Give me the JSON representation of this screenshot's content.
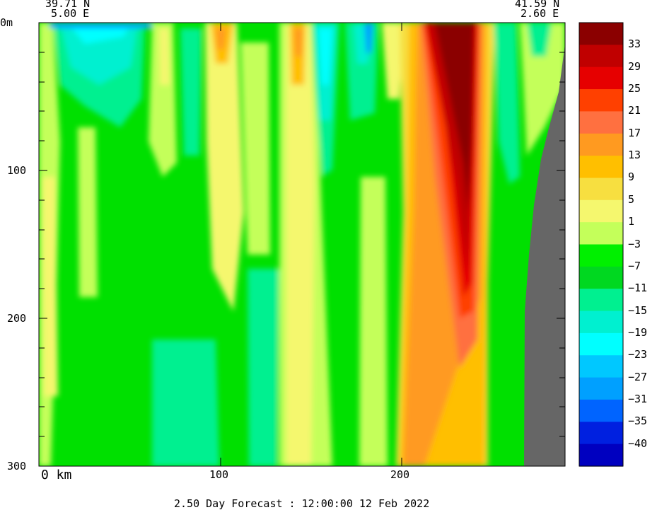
{
  "header": {
    "start_lat": "39.71 N",
    "start_lon": "5.00 E",
    "end_lat": "41.59 N",
    "end_lon": "2.60 E"
  },
  "footer": {
    "forecast": "2.50 Day Forecast : 12:00:00  12 Feb 2022"
  },
  "chart_data": {
    "type": "heatmap",
    "title": "",
    "xlabel": "km",
    "ylabel": "m",
    "x_range": [
      0,
      290
    ],
    "y_range": [
      0,
      300
    ],
    "y_inverted": true,
    "x_ticks": [
      {
        "value": 0,
        "label": "0 km"
      },
      {
        "value": 100,
        "label": "100"
      },
      {
        "value": 200,
        "label": "200"
      }
    ],
    "y_ticks": [
      {
        "value": 0,
        "label": "0m"
      },
      {
        "value": 100,
        "label": "100"
      },
      {
        "value": 200,
        "label": "200"
      },
      {
        "value": 300,
        "label": "300"
      }
    ],
    "colorbar": {
      "levels": [
        "33",
        "29",
        "25",
        "21",
        "17",
        "13",
        "9",
        "5",
        "1",
        "−3",
        "−7",
        "−11",
        "−15",
        "−19",
        "−23",
        "−27",
        "−31",
        "−35",
        "−40"
      ],
      "colors": [
        "#8b0000",
        "#c00000",
        "#e60000",
        "#ff4000",
        "#ff7040",
        "#ff9a20",
        "#ffbf00",
        "#f7df40",
        "#f5f76e",
        "#c4ff5a",
        "#00f000",
        "#00d820",
        "#00f090",
        "#00f0d0",
        "#00ffff",
        "#00c8ff",
        "#00a0ff",
        "#0064ff",
        "#0020e0",
        "#0000c0"
      ]
    },
    "land_mask": {
      "color": "#666666",
      "x_km_at_bottom": 270,
      "x_km_at_top": 290
    },
    "features": [
      {
        "name": "warm core",
        "x_km": 235,
        "depth_to_m": 200,
        "value": 33
      },
      {
        "name": "warm band",
        "x_km": 220,
        "depth_to_m": 300,
        "value": 9
      },
      {
        "name": "cool surface band",
        "x_km": 155,
        "depth_to_m": 100,
        "value": -19
      }
    ]
  }
}
